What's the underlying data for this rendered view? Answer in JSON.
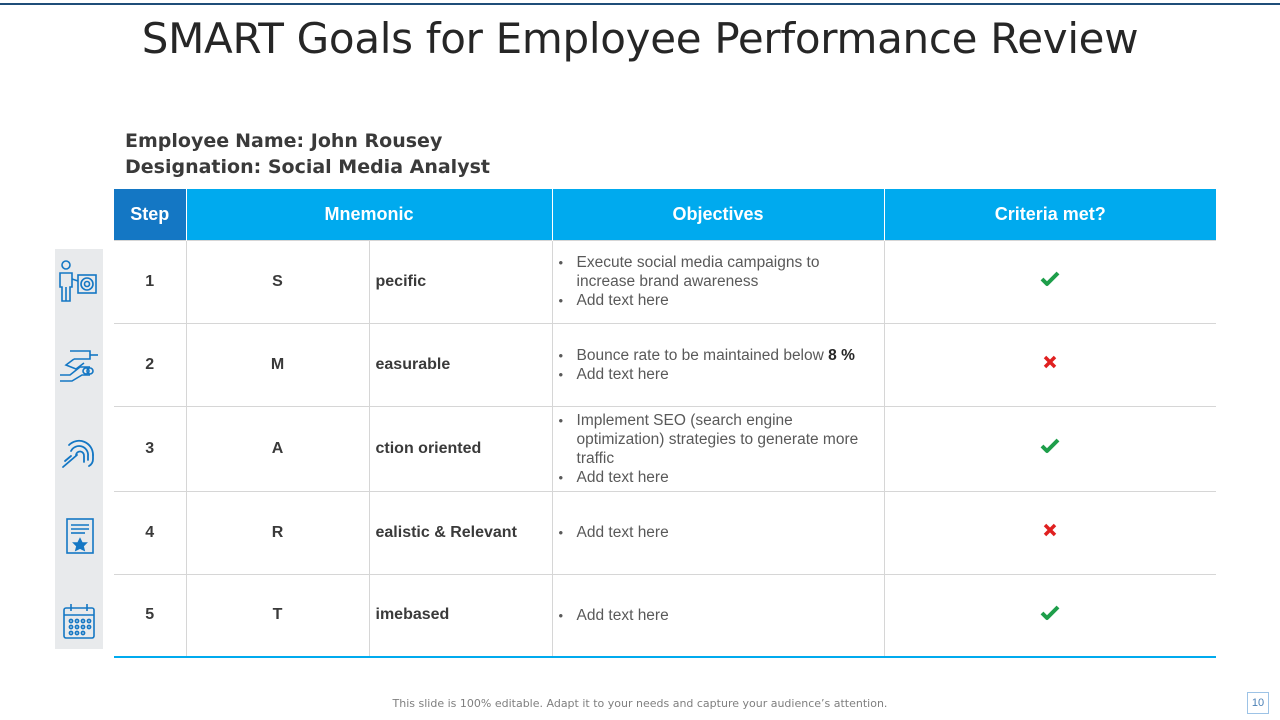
{
  "slide": {
    "title": "SMART Goals for Employee Performance Review",
    "footer": "This slide is 100% editable. Adapt it to your needs and capture your audience’s attention.",
    "page_number": "10"
  },
  "employee": {
    "name_label": "Employee",
    "name_label2": "Name:",
    "name_value": "John Rousey",
    "designation_label": "Designation:",
    "designation_value": "Social Media Analyst"
  },
  "table": {
    "headers": [
      "Step",
      "Mnemonic",
      "Objectives",
      "Criteria met?"
    ],
    "rows": [
      {
        "step": "1",
        "letter": "S",
        "word": "pecific",
        "icon": "businessman-target-icon",
        "objectives": [
          "Execute social media campaigns to increase brand awareness",
          "Add text here"
        ],
        "met": true
      },
      {
        "step": "2",
        "letter": "M",
        "word": "easurable",
        "icon": "handshake-icon",
        "objectives": [
          "Bounce rate to be maintained below ",
          "Add text here"
        ],
        "objective_highlight": "8 %",
        "met": false
      },
      {
        "step": "3",
        "letter": "A",
        "word": "ction oriented",
        "icon": "fingerprint-icon",
        "objectives": [
          "Implement  SEO (search engine optimization) strategies to generate more traffic",
          "Add text here"
        ],
        "met": true
      },
      {
        "step": "4",
        "letter": "R",
        "word": "ealistic  & Relevant",
        "icon": "certificate-star-icon",
        "objectives": [
          "Add text here"
        ],
        "met": false
      },
      {
        "step": "5",
        "letter": "T",
        "word": "imebased",
        "icon": "calendar-icon",
        "objectives": [
          "Add text here"
        ],
        "met": true
      }
    ]
  },
  "colors": {
    "header_blue": "#00aaee",
    "step_header_blue": "#1477c4",
    "check_green": "#1e9e4a",
    "cross_red": "#e02020",
    "icon_blue": "#1477c4"
  }
}
